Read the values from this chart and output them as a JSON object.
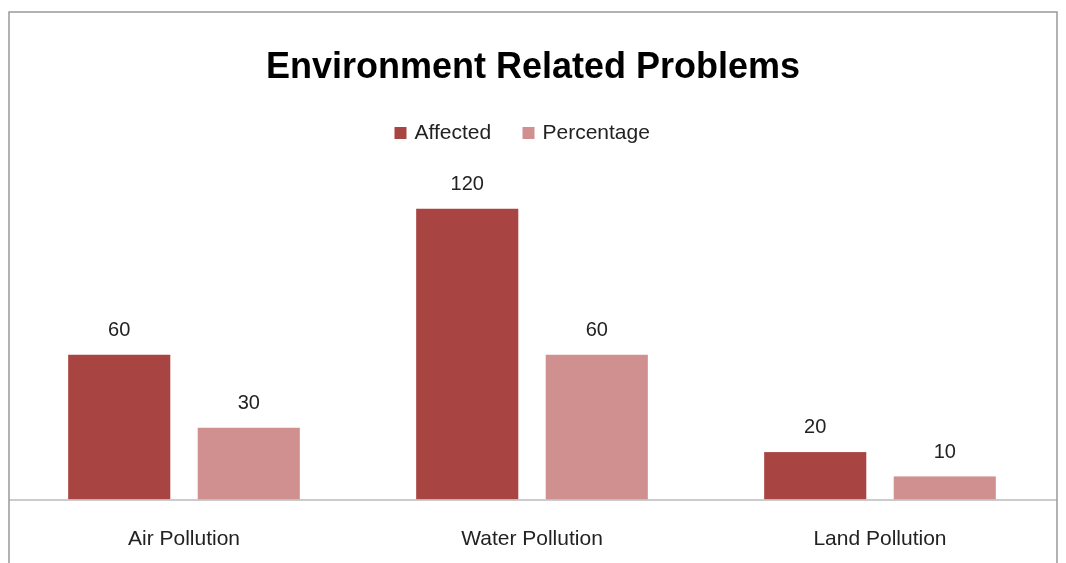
{
  "chart_data": {
    "type": "bar",
    "title": "Environment Related Problems",
    "categories": [
      "Air Pollution",
      "Water Pollution",
      "Land Pollution"
    ],
    "series": [
      {
        "name": "Affected",
        "color": "#a84442",
        "values": [
          60,
          120,
          20
        ]
      },
      {
        "name": "Percentage",
        "color": "#d09090",
        "values": [
          30,
          60,
          10
        ]
      }
    ],
    "data_labels": true,
    "legend": "top"
  }
}
